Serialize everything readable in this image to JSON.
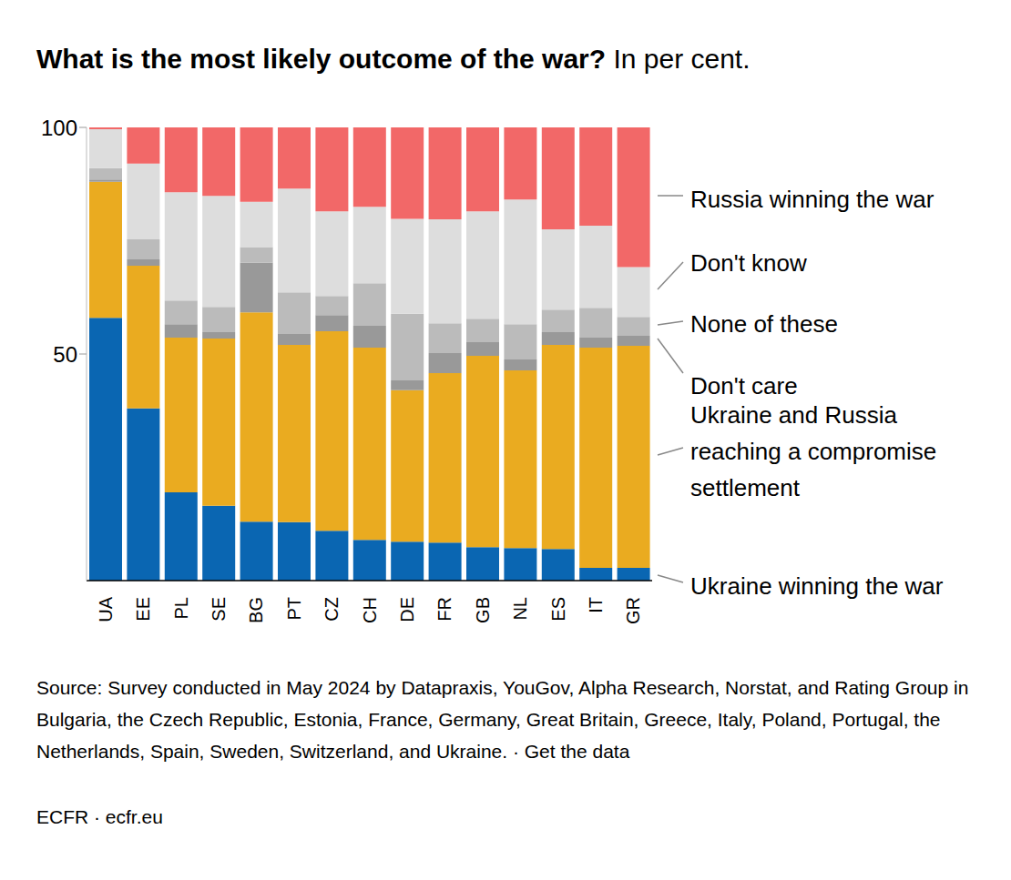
{
  "chart_data": {
    "type": "bar",
    "title": "What is the most likely outcome of the war?",
    "subtitle": "In per cent.",
    "source": "Source: Survey conducted in May 2024 by Datapraxis, YouGov, Alpha Research, Norstat, and Rating Group in Bulgaria, the Czech Republic, Estonia, France, Germany, Great Britain, Greece, Italy, Poland, Portugal, the Netherlands, Spain, Sweden, Switzerland, and Ukraine. · Get the data",
    "credit": "ECFR · ecfr.eu",
    "categories": [
      "UA",
      "EE",
      "PL",
      "SE",
      "BG",
      "PT",
      "CZ",
      "CH",
      "DE",
      "FR",
      "GB",
      "NL",
      "ES",
      "IT",
      "GR"
    ],
    "stacked": true,
    "legend": "right",
    "grid": false,
    "ylim": [
      0,
      100
    ],
    "yticks": [
      50,
      100
    ],
    "series": [
      {
        "name": "Ukraine winning the war",
        "color": "#0a66b2",
        "values": [
          58,
          38,
          19.5,
          16.5,
          13,
          12.9,
          11,
          9,
          8.6,
          8.4,
          7.4,
          7.2,
          7,
          2.8,
          2.8
        ]
      },
      {
        "name": "Ukraine and Russia reaching a compromise settlement",
        "color": "#eaab20",
        "values": [
          30,
          31.5,
          34.1,
          36.9,
          46.2,
          39.1,
          44,
          42.4,
          33.4,
          37.4,
          42.2,
          39.2,
          45,
          48.6,
          49
        ]
      },
      {
        "name": "Don't care",
        "color": "#999999",
        "values": [
          0.5,
          1.4,
          3,
          1.4,
          11,
          2.4,
          3.6,
          4.8,
          2.2,
          4.4,
          3,
          2.4,
          2.8,
          2.2,
          2.2
        ]
      },
      {
        "name": "None of these",
        "color": "#bbbbbb",
        "values": [
          2.5,
          4.4,
          5.2,
          5.6,
          3.4,
          9.2,
          4.2,
          9.4,
          14.7,
          6.6,
          5.2,
          7.8,
          5,
          6.6,
          4.2
        ]
      },
      {
        "name": "Don't know",
        "color": "#dddddd",
        "values": [
          8.6,
          16.7,
          23.9,
          24.5,
          10,
          22.9,
          18.7,
          16.9,
          20.9,
          22.9,
          23.7,
          27.5,
          17.7,
          18.1,
          11
        ]
      },
      {
        "name": "Russia winning the war",
        "color": "#f26868",
        "values": [
          0.4,
          8,
          14.3,
          15.1,
          16.4,
          13.5,
          18.5,
          17.5,
          20.2,
          20.3,
          18.5,
          15.9,
          22.5,
          21.7,
          30.8
        ]
      }
    ]
  }
}
